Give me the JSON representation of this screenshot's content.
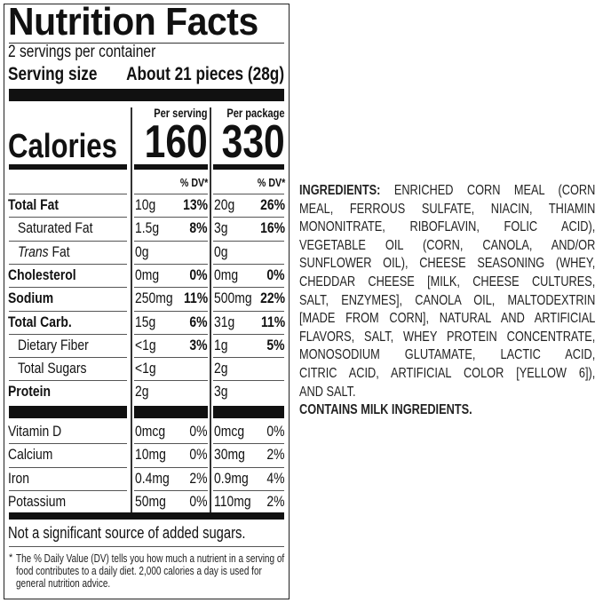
{
  "label": {
    "title": "Nutrition Facts",
    "servings_per_container": "2 servings per container",
    "serving_size_label": "Serving size",
    "serving_size_value": "About 21 pieces (28g)",
    "per_serving_label": "Per serving",
    "per_package_label": "Per package",
    "calories_label": "Calories",
    "calories_serving": "160",
    "calories_package": "330",
    "dv_header": "% DV*",
    "nutrients": [
      {
        "name": "Total Fat",
        "bold": true,
        "indent": false,
        "s_amt": "10g",
        "s_dv": "13%",
        "p_amt": "20g",
        "p_dv": "26%"
      },
      {
        "name": "Saturated Fat",
        "bold": false,
        "indent": true,
        "s_amt": "1.5g",
        "s_dv": "8%",
        "p_amt": "3g",
        "p_dv": "16%"
      },
      {
        "name_italic": "Trans",
        "name": " Fat",
        "bold": false,
        "indent": true,
        "s_amt": "0g",
        "s_dv": "",
        "p_amt": "0g",
        "p_dv": ""
      },
      {
        "name": "Cholesterol",
        "bold": true,
        "indent": false,
        "s_amt": "0mg",
        "s_dv": "0%",
        "p_amt": "0mg",
        "p_dv": "0%"
      },
      {
        "name": "Sodium",
        "bold": true,
        "indent": false,
        "s_amt": "250mg",
        "s_dv": "11%",
        "p_amt": "500mg",
        "p_dv": "22%"
      },
      {
        "name": "Total Carb.",
        "bold": true,
        "indent": false,
        "s_amt": "15g",
        "s_dv": "6%",
        "p_amt": "31g",
        "p_dv": "11%"
      },
      {
        "name": "Dietary Fiber",
        "bold": false,
        "indent": true,
        "s_amt": "<1g",
        "s_dv": "3%",
        "p_amt": "1g",
        "p_dv": "5%"
      },
      {
        "name": "Total Sugars",
        "bold": false,
        "indent": true,
        "s_amt": "<1g",
        "s_dv": "",
        "p_amt": "2g",
        "p_dv": ""
      },
      {
        "name": "Protein",
        "bold": true,
        "indent": false,
        "s_amt": "2g",
        "s_dv": "",
        "p_amt": "3g",
        "p_dv": ""
      }
    ],
    "vitamins": [
      {
        "name": "Vitamin D",
        "s_amt": "0mcg",
        "s_dv": "0%",
        "p_amt": "0mcg",
        "p_dv": "0%"
      },
      {
        "name": "Calcium",
        "s_amt": "10mg",
        "s_dv": "0%",
        "p_amt": "30mg",
        "p_dv": "2%"
      },
      {
        "name": "Iron",
        "s_amt": "0.4mg",
        "s_dv": "2%",
        "p_amt": "0.9mg",
        "p_dv": "4%"
      },
      {
        "name": "Potassium",
        "s_amt": "50mg",
        "s_dv": "0%",
        "p_amt": "110mg",
        "p_dv": "2%"
      }
    ],
    "added_sugars_note": "Not a significant source of added sugars.",
    "footnote_mark": "*",
    "footnote_lines": [
      "The % Daily Value (DV) tells you how much a nutrient in a serving of",
      "food contributes to a daily diet. 2,000 calories a day is used for",
      "general nutrition advice."
    ]
  },
  "ingredients": {
    "heading": "INGREDIENTS:",
    "lines": [
      "ENRICHED CORN MEAL (CORN",
      "MEAL, FERROUS SULFATE, NIACIN, THIAMIN",
      "MONONITRATE, RIBOFLAVIN, FOLIC ACID),",
      "VEGETABLE OIL (CORN, CANOLA, AND/OR",
      "SUNFLOWER OIL), CHEESE SEASONING (WHEY,",
      "CHEDDAR CHEESE [MILK, CHEESE CULTURES,",
      "SALT, ENZYMES], CANOLA OIL, MALTODEXTRIN",
      "[MADE FROM CORN], NATURAL AND ARTIFICIAL",
      "FLAVORS, SALT, WHEY PROTEIN CONCENTRATE,",
      "MONOSODIUM GLUTAMATE, LACTIC ACID,",
      "CITRIC ACID, ARTIFICIAL COLOR [YELLOW 6]),",
      "AND SALT."
    ],
    "allergen": "CONTAINS MILK INGREDIENTS."
  }
}
